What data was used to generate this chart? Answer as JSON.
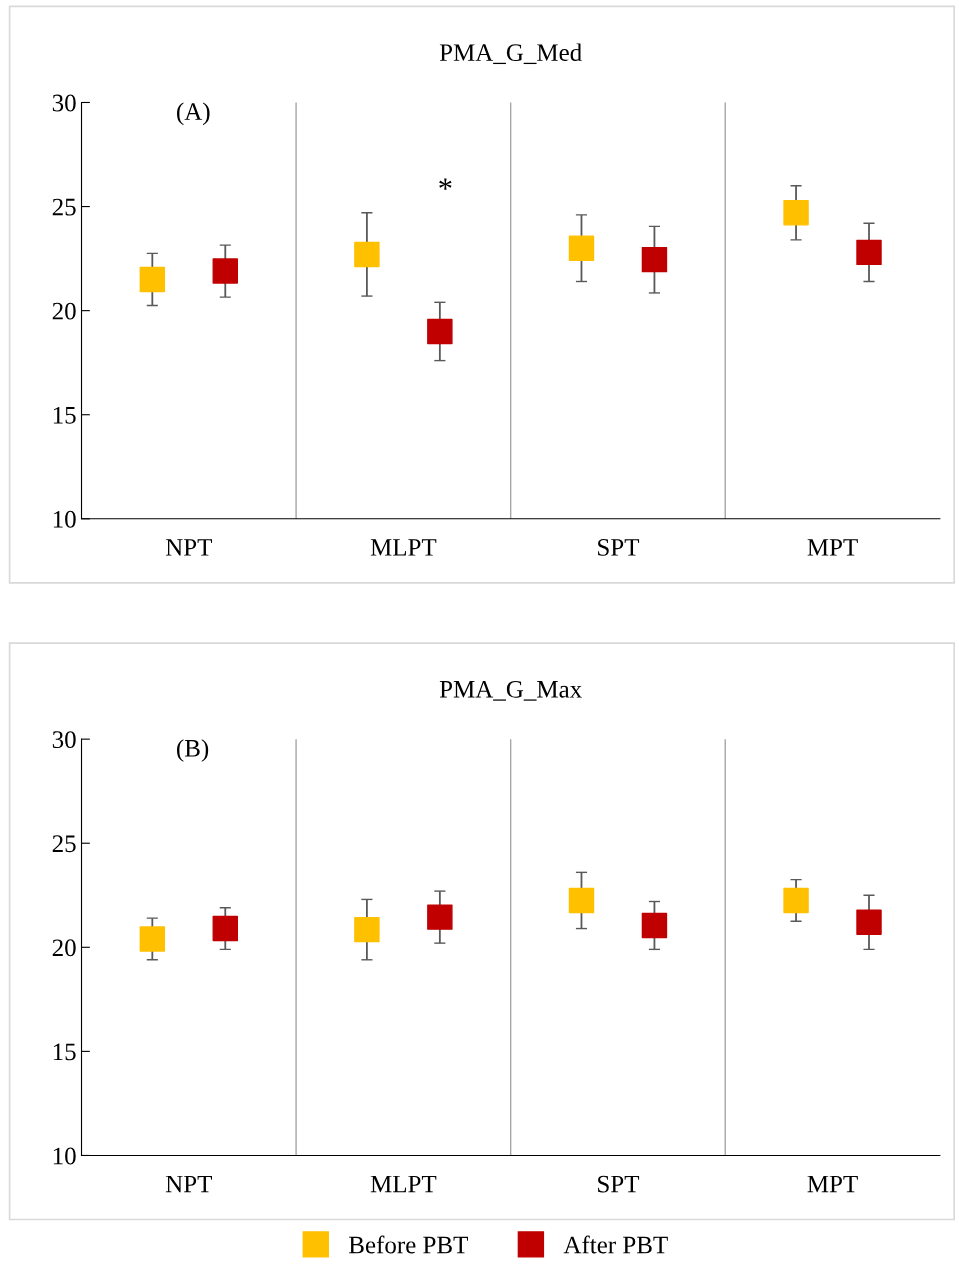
{
  "chart_data": [
    {
      "type": "scatter",
      "title": "PMA_G_Med",
      "categories": [
        "NPT",
        "MLPT",
        "SPT",
        "MPT"
      ],
      "ylim": [
        10,
        30
      ],
      "yticks": [
        10,
        15,
        20,
        25,
        30
      ],
      "grid": "x",
      "marker": "square",
      "series": [
        {
          "color": "#ffc000",
          "values": [
            21.5,
            22.7,
            23.0,
            24.7
          ],
          "errors": [
            1.25,
            2.0,
            1.6,
            1.3
          ]
        },
        {
          "color": "#c00000",
          "values": [
            21.9,
            19.0,
            22.45,
            22.8
          ],
          "errors": [
            1.25,
            1.4,
            1.6,
            1.4
          ]
        }
      ],
      "annotations": [
        "(A)",
        "*"
      ]
    },
    {
      "type": "scatter",
      "title": "PMA_G_Max",
      "categories": [
        "NPT",
        "MLPT",
        "SPT",
        "MPT"
      ],
      "ylim": [
        10,
        30
      ],
      "yticks": [
        10,
        15,
        20,
        25,
        30
      ],
      "grid": "x",
      "marker": "square",
      "legend": "bottom",
      "series": [
        {
          "name": "Before PBT",
          "color": "#ffc000",
          "values": [
            20.4,
            20.85,
            22.25,
            22.25
          ],
          "errors": [
            1.0,
            1.45,
            1.35,
            1.0
          ]
        },
        {
          "name": "After PBT",
          "color": "#c00000",
          "values": [
            20.9,
            21.45,
            21.05,
            21.2
          ],
          "errors": [
            1.0,
            1.25,
            1.15,
            1.3
          ]
        }
      ],
      "annotations": [
        "(B)"
      ]
    }
  ]
}
